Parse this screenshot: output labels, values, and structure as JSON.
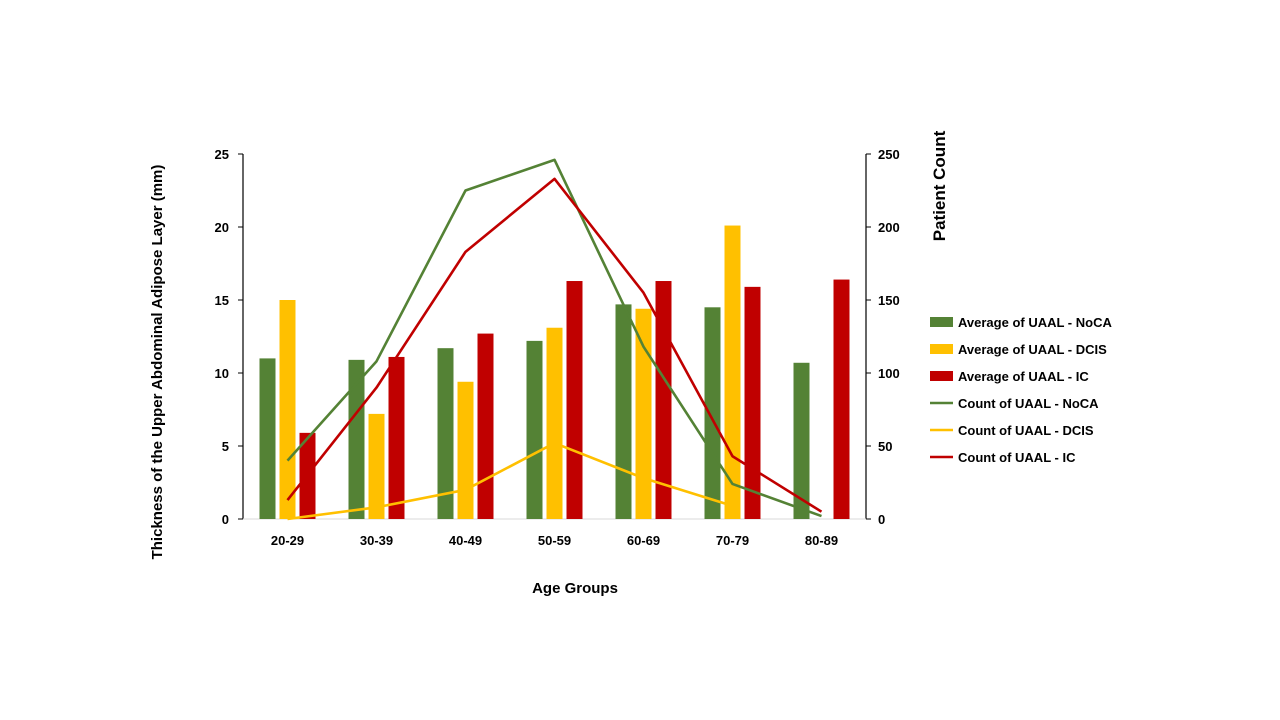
{
  "chart_data": {
    "type": "bar",
    "categories": [
      "20-29",
      "30-39",
      "40-49",
      "50-59",
      "60-69",
      "70-79",
      "80-89"
    ],
    "xlabel": "Age Groups",
    "ylabel": "Thickness of the Upper Abdominal Adipose Layer (mm)",
    "y2label": "Patient Count",
    "ylim": [
      0,
      25
    ],
    "y2lim": [
      0,
      250
    ],
    "yticks": [
      "0",
      "5",
      "10",
      "15",
      "20",
      "25"
    ],
    "y2ticks": [
      "0",
      "50",
      "100",
      "150",
      "200",
      "250"
    ],
    "legend_position": "right",
    "bar_series": [
      {
        "name": "Average of UAAL - NoCA",
        "color": "#548235",
        "values": [
          11.0,
          10.9,
          11.7,
          12.2,
          14.7,
          14.5,
          10.7
        ]
      },
      {
        "name": "Average of UAAL - DCIS",
        "color": "#FFC000",
        "values": [
          15.0,
          7.2,
          9.4,
          13.1,
          14.4,
          20.1,
          null
        ]
      },
      {
        "name": "Average of UAAL - IC",
        "color": "#C00000",
        "values": [
          5.9,
          11.1,
          12.7,
          16.3,
          16.3,
          15.9,
          16.4
        ]
      }
    ],
    "line_series": [
      {
        "name": "Count of UAAL - NoCA",
        "color": "#548235",
        "values": [
          40,
          108,
          225,
          246,
          118,
          24,
          2
        ]
      },
      {
        "name": "Count of UAAL - DCIS",
        "color": "#FFC000",
        "values": [
          0,
          8,
          20,
          52,
          28,
          9,
          null
        ]
      },
      {
        "name": "Count of UAAL - IC",
        "color": "#C00000",
        "values": [
          13,
          90,
          183,
          233,
          155,
          43,
          5
        ]
      }
    ]
  }
}
